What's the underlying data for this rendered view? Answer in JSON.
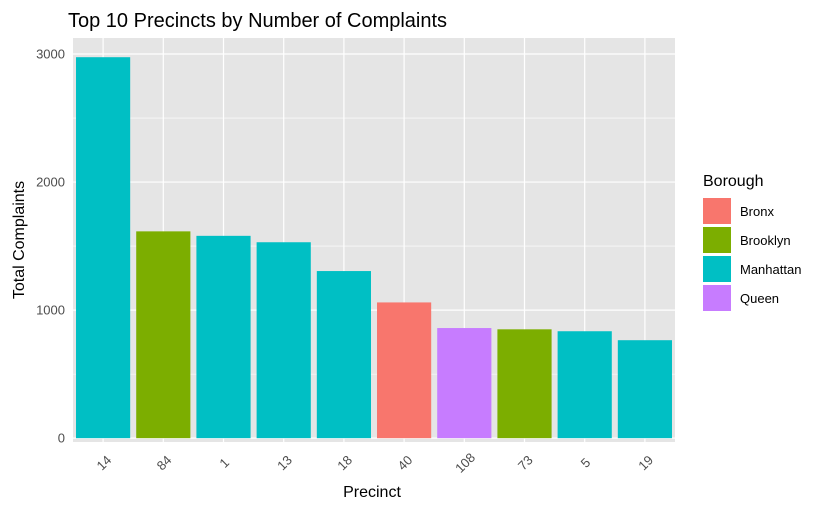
{
  "chart_data": {
    "type": "bar",
    "title": "Top 10 Precincts by Number of Complaints",
    "xlabel": "Precinct",
    "ylabel": "Total Complaints",
    "categories": [
      "14",
      "84",
      "1",
      "13",
      "18",
      "40",
      "108",
      "73",
      "5",
      "19"
    ],
    "values": [
      2975,
      1615,
      1580,
      1530,
      1305,
      1060,
      860,
      850,
      835,
      765
    ],
    "groups": [
      "Manhattan",
      "Brooklyn",
      "Manhattan",
      "Manhattan",
      "Manhattan",
      "Bronx",
      "Queen",
      "Brooklyn",
      "Manhattan",
      "Manhattan"
    ],
    "ylim": [
      -30,
      3125
    ],
    "yticks": [
      0,
      1000,
      2000,
      3000
    ],
    "grid": true,
    "legend": {
      "title": "Borough",
      "position": "right",
      "entries": [
        {
          "label": "Bronx",
          "color": "#F8766D"
        },
        {
          "label": "Brooklyn",
          "color": "#7CAE00"
        },
        {
          "label": "Manhattan",
          "color": "#00BFC4"
        },
        {
          "label": "Queen",
          "color": "#C77CFF"
        }
      ]
    },
    "colors": {
      "panel_background": "#E5E5E5",
      "grid": "#FFFFFF",
      "tick_text": "#4D4D4D"
    }
  }
}
